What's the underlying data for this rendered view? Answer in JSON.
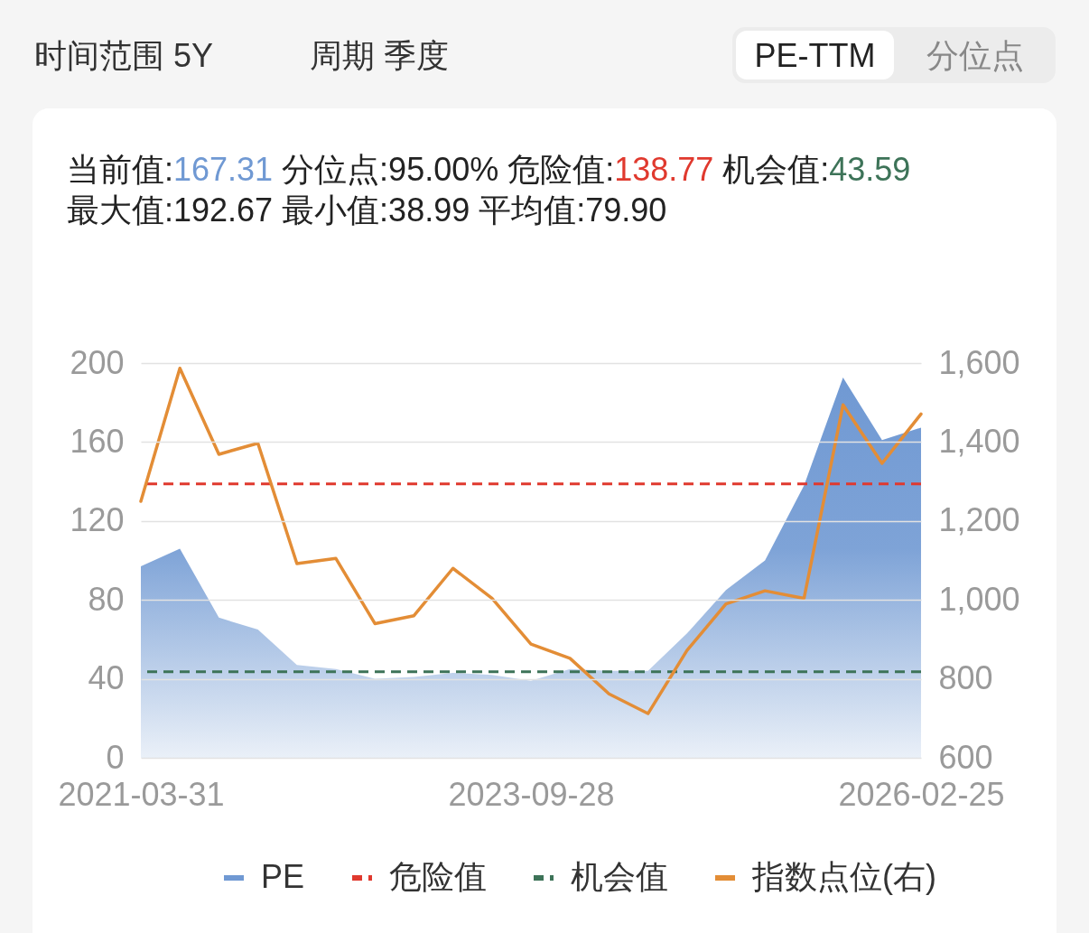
{
  "chart_data": {
    "type": "area",
    "annotations": [
      "时间范围 5Y",
      "周期 季度",
      "PE-TTM",
      "分位点",
      "当前值:167.31",
      "分位点:95.00%",
      "危险值:138.77",
      "机会值:43.59",
      "最大值:192.67",
      "最小值:38.99",
      "平均值:79.90"
    ],
    "categories": [
      "2021-03-31",
      null,
      null,
      null,
      null,
      null,
      null,
      null,
      null,
      null,
      "2023-09-28",
      null,
      null,
      null,
      null,
      null,
      null,
      null,
      null,
      null,
      "2026-02-25"
    ],
    "series": [
      {
        "name": "PE",
        "color": "#7099d3",
        "values": [
          97,
          106,
          71,
          65,
          47,
          45,
          40,
          41,
          43,
          42,
          38.99,
          45,
          44,
          44,
          63,
          85,
          100,
          138,
          192.67,
          161,
          167.31
        ]
      },
      {
        "name": "指数点位(右)",
        "type": "line",
        "axis": "y2",
        "color": "#e38d36",
        "values": [
          1250,
          1587,
          1369,
          1397,
          1092,
          1105,
          940,
          960,
          1080,
          1004,
          888,
          852,
          762,
          712,
          872,
          990,
          1023,
          1004,
          1494,
          1346,
          1471
        ]
      }
    ],
    "ref_lines": [
      {
        "axis": "y",
        "value": 138.77,
        "label": "危险值",
        "color": "#e0392e",
        "line_style": "dashed"
      },
      {
        "axis": "y",
        "value": 43.59,
        "label": "机会值",
        "color": "#3d7358",
        "line_style": "dashed"
      }
    ],
    "ylim": [
      0,
      200
    ],
    "yticks": [
      0,
      40,
      80,
      120,
      160,
      200
    ],
    "y2lim": [
      600,
      1600
    ],
    "y2ticks": [
      600,
      800,
      {
        "value": 1000,
        "label": "1,000"
      },
      {
        "value": 1200,
        "label": "1,200"
      },
      {
        "value": 1400,
        "label": "1,400"
      },
      {
        "value": 1600,
        "label": "1,600"
      }
    ],
    "grid": "y",
    "legend": "bottom"
  }
}
